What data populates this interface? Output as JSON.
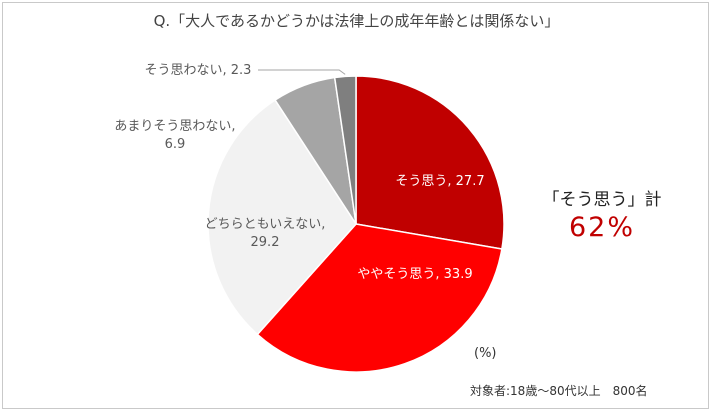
{
  "chart_data": {
    "type": "pie",
    "title": "Q.「大人であるかどうかは法律上の成年年齢とは関係ない」",
    "slices": [
      {
        "label": "そう思う",
        "value": 27.7,
        "display": "そう思う, 27.7",
        "color": "#c00000",
        "text_color": "#ffffff"
      },
      {
        "label": "ややそう思う",
        "value": 33.9,
        "display": "ややそう思う, 33.9",
        "color": "#ff0000",
        "text_color": "#ffffff"
      },
      {
        "label": "どちらともいえない",
        "value": 29.2,
        "display": "どちらともいえない, 29.2",
        "color": "#f2f2f2",
        "text_color": "#595959"
      },
      {
        "label": "あまりそう思わない",
        "value": 6.9,
        "display": "あまりそう思わない, 6.9",
        "color": "#a5a5a5",
        "text_color": "#595959"
      },
      {
        "label": "そう思わない",
        "value": 2.3,
        "display": "そう思わない, 2.3",
        "color": "#7f7f7f",
        "text_color": "#595959"
      }
    ],
    "unit": "(%)"
  },
  "summary": {
    "label": "「そう思う」計",
    "value": "62%"
  },
  "note": "対象者:18歳～80代以上　800名"
}
